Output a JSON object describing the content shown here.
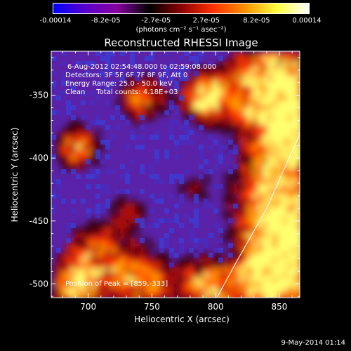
{
  "colorbar": {
    "ticks": [
      "-0.00014",
      "-8.2e-05",
      "-2.7e-05",
      "2.7e-05",
      "8.2e-05",
      "0.00014"
    ],
    "unit_label": "(photons cm⁻² s⁻¹ asec⁻²)",
    "gradient": [
      "#0000ff",
      "#5a00cc",
      "#8800a0",
      "#000000",
      "#8c0000",
      "#ff3000",
      "#ff9000",
      "#ffff40",
      "#ffffff"
    ]
  },
  "title": "Reconstructed RHESSI Image",
  "annotations": {
    "line1": "6-Aug-2012 02:54:48.000 to 02:59:08.000",
    "line2": "Detectors: 3F 5F 6F 7F 8F 9F, Att 0",
    "line3": "Energy Range: 25.0 - 50.0 keV",
    "line4": "Clean     Total counts: 4.18E+03",
    "peak": "Position of Peak = [859,-333]"
  },
  "footer_date": "9-May-2014 01:14",
  "chart_data": {
    "type": "heatmap",
    "title": "Reconstructed RHESSI Image",
    "xlabel": "Heliocentric X (arcsec)",
    "ylabel": "Heliocentric Y (arcsec)",
    "xlim": [
      671,
      866
    ],
    "ylim": [
      -511,
      -315
    ],
    "xticks": [
      700,
      750,
      800,
      850
    ],
    "yticks": [
      -350,
      -400,
      -450,
      -500
    ],
    "value_range": [
      -0.00014,
      0.00014
    ],
    "peak_position": [
      859,
      -333
    ],
    "limb_curve": [
      [
        866,
        -381
      ],
      [
        840,
        -440
      ],
      [
        815,
        -485
      ],
      [
        801,
        -511
      ]
    ]
  }
}
